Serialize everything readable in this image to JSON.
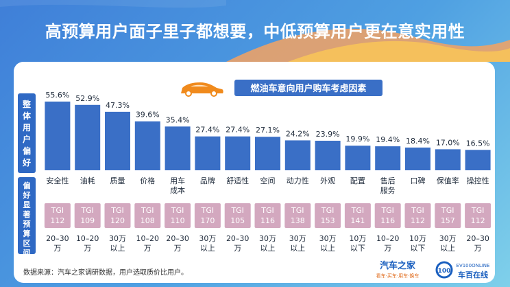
{
  "headline": "高预算用户面子里子都想要，中低预算用户更在意实用性",
  "chart_data": {
    "type": "bar",
    "title": "燃油车意向用户购车考虑因素",
    "ylim": [
      0,
      60
    ],
    "categories": [
      "安全性",
      "油耗",
      "质量",
      "价格",
      "用车\n成本",
      "品牌",
      "舒适性",
      "空间",
      "动力性",
      "外观",
      "配置",
      "售后\n服务",
      "口碑",
      "保值率",
      "操控性"
    ],
    "values": [
      55.6,
      52.9,
      47.3,
      39.6,
      35.4,
      27.4,
      27.4,
      27.1,
      24.2,
      23.9,
      19.9,
      19.4,
      18.4,
      17.0,
      16.5
    ],
    "value_labels": [
      "55.6%",
      "52.9%",
      "47.3%",
      "39.6%",
      "35.4%",
      "27.4%",
      "27.4%",
      "27.1%",
      "24.2%",
      "23.9%",
      "19.9%",
      "19.4%",
      "18.4%",
      "17.0%",
      "16.5%"
    ],
    "tgi_prefix": "TGI",
    "tgi": [
      "112",
      "109",
      "120",
      "108",
      "110",
      "170",
      "105",
      "116",
      "138",
      "153",
      "141",
      "116",
      "112",
      "157",
      "112"
    ],
    "budget": [
      "20–30\n万",
      "10–20\n万",
      "30万\n以上",
      "10–20\n万",
      "20–30\n万",
      "30万\n以上",
      "20–30\n万",
      "30万\n以上",
      "30万\n以上",
      "30万\n以上",
      "10万\n以下",
      "10–20\n万",
      "10万\n以下",
      "30万\n以上",
      "20–30\n万"
    ],
    "row_label_top": "整体用户偏好",
    "row_label_bottom": "偏好显著预算区间"
  },
  "source_note": "数据来源：汽车之家调研数据，用户选取质价比用户。",
  "logo_autohome": "汽车之家",
  "logo_autohome_sub": "看车·买车·用车·换车",
  "logo_evcar": "EV100ONLINE",
  "logo_evcar_cn": "车百在线",
  "colors": {
    "bar": "#3a6fc6",
    "tgi_box": "#d3a8bf",
    "title_box": "#3a6fc6",
    "side_label": "#2f69c4",
    "car": "#f08a1c"
  }
}
